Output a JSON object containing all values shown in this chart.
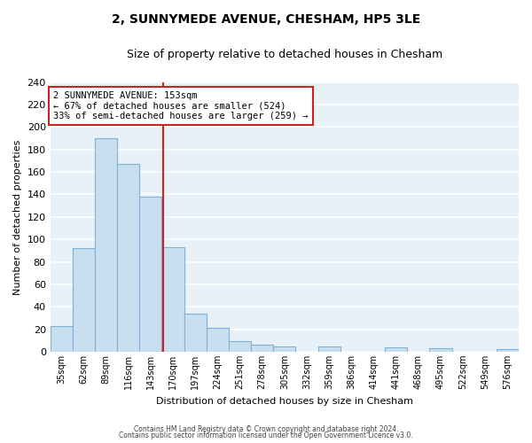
{
  "title": "2, SUNNYMEDE AVENUE, CHESHAM, HP5 3LE",
  "subtitle": "Size of property relative to detached houses in Chesham",
  "xlabel": "Distribution of detached houses by size in Chesham",
  "ylabel": "Number of detached properties",
  "bar_labels": [
    "35sqm",
    "62sqm",
    "89sqm",
    "116sqm",
    "143sqm",
    "170sqm",
    "197sqm",
    "224sqm",
    "251sqm",
    "278sqm",
    "305sqm",
    "332sqm",
    "359sqm",
    "386sqm",
    "414sqm",
    "441sqm",
    "468sqm",
    "495sqm",
    "522sqm",
    "549sqm",
    "576sqm"
  ],
  "bar_values": [
    23,
    92,
    190,
    167,
    138,
    93,
    34,
    21,
    9,
    6,
    5,
    0,
    5,
    0,
    0,
    4,
    0,
    3,
    0,
    0,
    2
  ],
  "bar_color": "#c8dff0",
  "bar_edge_color": "#7fb0d8",
  "annotation_title": "2 SUNNYMEDE AVENUE: 153sqm",
  "annotation_line1": "← 67% of detached houses are smaller (524)",
  "annotation_line2": "33% of semi-detached houses are larger (259) →",
  "annotation_box_facecolor": "#ffffff",
  "annotation_box_edgecolor": "#cc2222",
  "line_color": "#cc2222",
  "line_x_index": 4.57,
  "ylim": [
    0,
    240
  ],
  "yticks": [
    0,
    20,
    40,
    60,
    80,
    100,
    120,
    140,
    160,
    180,
    200,
    220,
    240
  ],
  "footer1": "Contains HM Land Registry data © Crown copyright and database right 2024.",
  "footer2": "Contains public sector information licensed under the Open Government Licence v3.0.",
  "background_color": "#e8f0f8",
  "grid_color": "#ffffff",
  "fig_bg_color": "#ffffff",
  "title_fontsize": 10,
  "subtitle_fontsize": 9,
  "ylabel_fontsize": 8,
  "xlabel_fontsize": 8,
  "ytick_fontsize": 8,
  "xtick_fontsize": 7,
  "annotation_fontsize": 7.5,
  "footer_fontsize": 5.5
}
